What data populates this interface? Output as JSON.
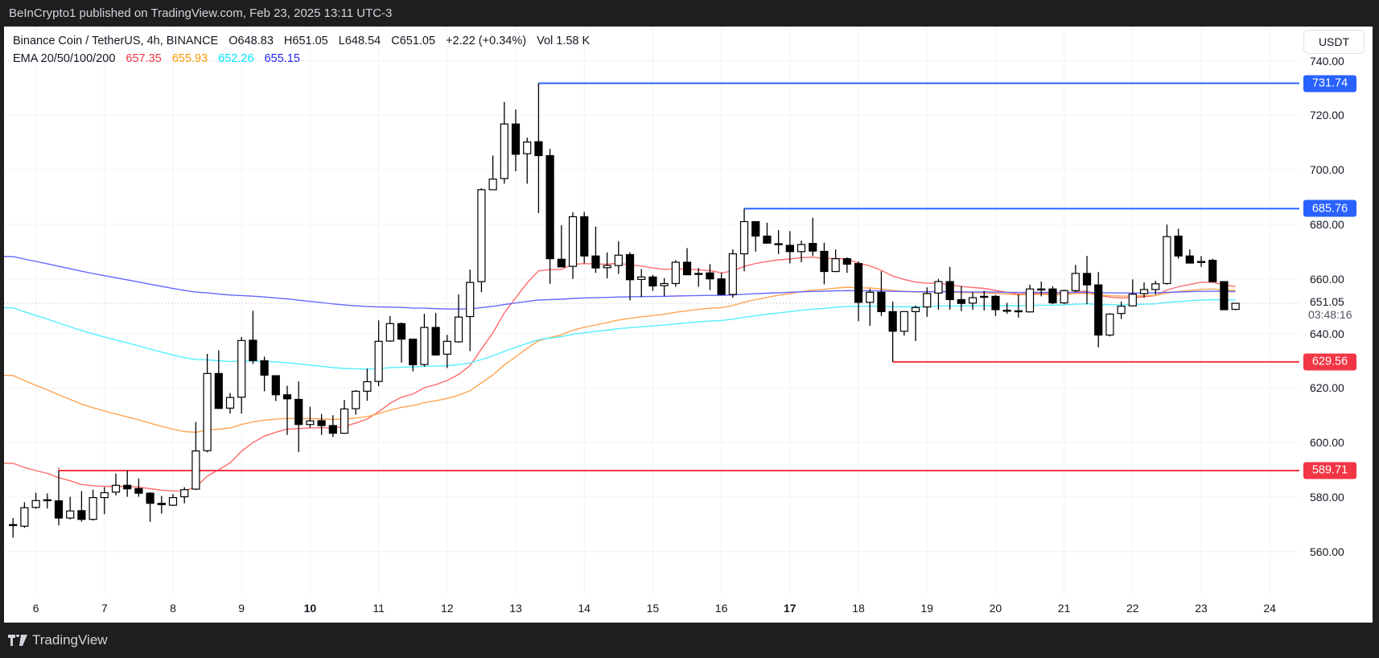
{
  "header": {
    "published": "BeInCrypto1 published on TradingView.com, Feb 23, 2025 13:11 UTC-3"
  },
  "footer": {
    "brand": "TradingView"
  },
  "legend": {
    "symbol": "Binance Coin / TetherUS, 4h, BINANCE",
    "open": "O648.83",
    "high": "H651.05",
    "low": "L648.54",
    "close": "C651.05",
    "change": "+2.22 (+0.34%)",
    "volume": "Vol 1.58 K",
    "ema_label": "EMA 20/50/100/200",
    "ema_values": [
      {
        "value": "657.35",
        "color": "#f23645"
      },
      {
        "value": "655.93",
        "color": "#ff9800"
      },
      {
        "value": "652.26",
        "color": "#00e5ff"
      },
      {
        "value": "655.15",
        "color": "#2424ff"
      }
    ]
  },
  "currency_button": "USDT",
  "chart_data": {
    "type": "candlestick",
    "title": "Binance Coin / TetherUS, 4h, BINANCE",
    "start_day": 5.6667,
    "candle_days": 0.16667,
    "ylim": [
      550,
      745
    ],
    "xlim": [
      5.5,
      24.5
    ],
    "y_ticks": [
      "740.00",
      "720.00",
      "700.00",
      "680.00",
      "660.00",
      "640.00",
      "620.00",
      "600.00",
      "580.00",
      "560.00"
    ],
    "x_ticks": [
      {
        "label": "6",
        "day": 6
      },
      {
        "label": "7",
        "day": 7
      },
      {
        "label": "8",
        "day": 8
      },
      {
        "label": "9",
        "day": 9
      },
      {
        "label": "10",
        "day": 10,
        "bold": true
      },
      {
        "label": "11",
        "day": 11
      },
      {
        "label": "12",
        "day": 12
      },
      {
        "label": "13",
        "day": 13
      },
      {
        "label": "14",
        "day": 14
      },
      {
        "label": "15",
        "day": 15
      },
      {
        "label": "16",
        "day": 16
      },
      {
        "label": "17",
        "day": 17,
        "bold": true
      },
      {
        "label": "18",
        "day": 18
      },
      {
        "label": "19",
        "day": 19
      },
      {
        "label": "20",
        "day": 20
      },
      {
        "label": "21",
        "day": 21
      },
      {
        "label": "22",
        "day": 22
      },
      {
        "label": "23",
        "day": 23
      },
      {
        "label": "24",
        "day": 24
      }
    ],
    "ohlc": [
      [
        569.9,
        572.3,
        565.1,
        569.9
      ],
      [
        569.3,
        578.1,
        568.7,
        576.1
      ],
      [
        576.2,
        581.6,
        575.7,
        578.7
      ],
      [
        579.0,
        581.3,
        575.8,
        579.0
      ],
      [
        578.6,
        589.7,
        569.6,
        572.3
      ],
      [
        572.3,
        580.1,
        571.8,
        574.9
      ],
      [
        575.0,
        582.2,
        571.0,
        571.8
      ],
      [
        571.8,
        582.7,
        571.4,
        579.8
      ],
      [
        579.8,
        583.6,
        573.7,
        581.6
      ],
      [
        581.8,
        588.6,
        580.6,
        584.3
      ],
      [
        584.3,
        589.7,
        580.1,
        583.0
      ],
      [
        583.1,
        586.8,
        580.1,
        581.4
      ],
      [
        581.4,
        581.8,
        570.9,
        577.7
      ],
      [
        577.7,
        580.4,
        573.9,
        577.2
      ],
      [
        577.0,
        581.1,
        576.7,
        579.8
      ],
      [
        580.1,
        583.6,
        577.7,
        582.7
      ],
      [
        582.9,
        607.5,
        582.6,
        596.9
      ],
      [
        597.0,
        632.5,
        596.4,
        625.3
      ],
      [
        625.3,
        633.8,
        612.3,
        612.5
      ],
      [
        612.6,
        618.2,
        610.6,
        616.5
      ],
      [
        616.6,
        638.7,
        610.6,
        637.4
      ],
      [
        637.5,
        648.3,
        628.8,
        630.0
      ],
      [
        630.0,
        631.5,
        618.8,
        624.7
      ],
      [
        624.5,
        624.5,
        615.2,
        617.5
      ],
      [
        617.5,
        620.8,
        602.8,
        616.0
      ],
      [
        615.8,
        622.4,
        596.5,
        606.6
      ],
      [
        606.6,
        613.1,
        605.4,
        607.9
      ],
      [
        608.0,
        610.5,
        602.8,
        606.2
      ],
      [
        606.2,
        610.0,
        602.0,
        603.4
      ],
      [
        603.4,
        615.6,
        603.2,
        612.3
      ],
      [
        612.4,
        619.2,
        610.2,
        618.8
      ],
      [
        618.8,
        627.1,
        615.3,
        622.3
      ],
      [
        622.4,
        644.8,
        620.6,
        637.1
      ],
      [
        637.2,
        646.4,
        636.9,
        643.6
      ],
      [
        643.6,
        644.0,
        629.3,
        637.9
      ],
      [
        637.9,
        637.9,
        626.1,
        628.5
      ],
      [
        628.6,
        647.2,
        627.8,
        642.2
      ],
      [
        642.2,
        647.5,
        631.8,
        632.1
      ],
      [
        632.4,
        639.5,
        627.3,
        637.1
      ],
      [
        636.9,
        654.3,
        636.6,
        646.0
      ],
      [
        646.2,
        663.4,
        633.5,
        658.7
      ],
      [
        659.0,
        693.2,
        655.1,
        692.7
      ],
      [
        692.7,
        705.2,
        692.5,
        696.6
      ],
      [
        696.8,
        724.9,
        694.9,
        716.8
      ],
      [
        716.8,
        722.1,
        699.5,
        705.7
      ],
      [
        705.9,
        711.8,
        694.9,
        710.2
      ],
      [
        710.3,
        731.74,
        684.1,
        705.2
      ],
      [
        705.2,
        707.7,
        658.2,
        667.4
      ],
      [
        667.2,
        679.7,
        664.4,
        664.4
      ],
      [
        664.6,
        684.4,
        660.0,
        682.8
      ],
      [
        682.8,
        684.6,
        665.7,
        668.4
      ],
      [
        668.4,
        679.2,
        662.2,
        664.0
      ],
      [
        664.1,
        669.7,
        660.2,
        664.9
      ],
      [
        664.9,
        673.8,
        661.8,
        668.7
      ],
      [
        668.9,
        669.8,
        652.1,
        659.7
      ],
      [
        659.8,
        663.6,
        653.3,
        660.7
      ],
      [
        660.7,
        661.5,
        655.6,
        657.4
      ],
      [
        657.5,
        660.3,
        653.6,
        658.3
      ],
      [
        658.3,
        666.9,
        657.1,
        666.1
      ],
      [
        666.1,
        671.3,
        661.5,
        661.5
      ],
      [
        662.0,
        664.0,
        657.1,
        661.9
      ],
      [
        662.2,
        665.4,
        655.9,
        660.0
      ],
      [
        660.0,
        662.2,
        654.1,
        654.3
      ],
      [
        654.3,
        670.8,
        653.1,
        669.2
      ],
      [
        669.2,
        685.76,
        662.8,
        681.0
      ],
      [
        681.0,
        681.0,
        670.0,
        675.7
      ],
      [
        675.7,
        680.6,
        673.1,
        673.1
      ],
      [
        672.9,
        677.9,
        669.1,
        672.8
      ],
      [
        672.3,
        677.5,
        665.7,
        670.0
      ],
      [
        670.0,
        674.0,
        666.1,
        672.6
      ],
      [
        673.0,
        682.4,
        668.4,
        670.2
      ],
      [
        670.1,
        673.3,
        658.0,
        662.7
      ],
      [
        662.7,
        670.8,
        662.5,
        667.4
      ],
      [
        667.4,
        667.9,
        662.2,
        665.4
      ],
      [
        665.6,
        666.4,
        644.5,
        651.4
      ],
      [
        651.4,
        656.3,
        642.8,
        655.1
      ],
      [
        655.1,
        662.8,
        646.4,
        648.0
      ],
      [
        648.0,
        651.7,
        629.56,
        640.8
      ],
      [
        640.8,
        648.0,
        639.2,
        648.0
      ],
      [
        648.0,
        650.2,
        637.2,
        649.5
      ],
      [
        649.7,
        656.9,
        646.1,
        654.6
      ],
      [
        654.8,
        660.0,
        648.7,
        659.0
      ],
      [
        659.0,
        664.4,
        648.7,
        652.4
      ],
      [
        652.4,
        657.3,
        648.2,
        651.0
      ],
      [
        651.1,
        655.1,
        648.7,
        653.1
      ],
      [
        653.6,
        655.6,
        648.4,
        653.5
      ],
      [
        653.6,
        654.1,
        646.4,
        648.7
      ],
      [
        648.5,
        651.2,
        647.2,
        648.4
      ],
      [
        648.2,
        654.3,
        645.8,
        648.3
      ],
      [
        647.9,
        657.9,
        647.7,
        656.3
      ],
      [
        656.2,
        659.0,
        653.6,
        656.3
      ],
      [
        656.3,
        657.3,
        650.7,
        651.2
      ],
      [
        651.2,
        656.1,
        650.7,
        655.7
      ],
      [
        655.7,
        665.1,
        655.1,
        662.0
      ],
      [
        662.0,
        668.4,
        650.7,
        657.8
      ],
      [
        657.8,
        662.5,
        634.9,
        639.4
      ],
      [
        639.4,
        647.4,
        638.9,
        647.1
      ],
      [
        647.3,
        651.7,
        645.3,
        650.0
      ],
      [
        650.1,
        659.8,
        650.0,
        654.4
      ],
      [
        654.6,
        658.7,
        653.1,
        656.1
      ],
      [
        656.1,
        659.3,
        654.3,
        658.2
      ],
      [
        658.3,
        679.9,
        657.9,
        675.5
      ],
      [
        675.7,
        678.4,
        667.4,
        668.4
      ],
      [
        668.4,
        670.8,
        665.8,
        665.8
      ],
      [
        666.0,
        668.4,
        664.4,
        666.4
      ],
      [
        666.8,
        667.4,
        658.8,
        659.0
      ],
      [
        659.0,
        659.0,
        648.7,
        648.7
      ],
      [
        648.83,
        651.05,
        648.54,
        651.05
      ]
    ],
    "ema": [
      {
        "name": "EMA 20",
        "period": 20,
        "seed": 592.4,
        "color": "#ff6b6b"
      },
      {
        "name": "EMA 50",
        "period": 50,
        "seed": 624.6,
        "color": "#ffa450"
      },
      {
        "name": "EMA 100",
        "period": 100,
        "seed": 649.4,
        "color": "#55eeff"
      },
      {
        "name": "EMA 200",
        "period": 200,
        "seed": 668.2,
        "color": "#6666ff"
      }
    ],
    "levels": [
      {
        "price": 731.74,
        "label": "731.74",
        "from_day": 13.3333,
        "color": "#2962ff"
      },
      {
        "price": 685.76,
        "label": "685.76",
        "from_day": 16.3333,
        "color": "#2962ff"
      },
      {
        "price": 629.56,
        "label": "629.56",
        "from_day": 18.5,
        "color": "#f23645"
      },
      {
        "price": 589.71,
        "label": "589.71",
        "from_day": 6.3333,
        "color": "#f23645"
      }
    ],
    "last_price": {
      "price": 651.05,
      "label": "651.05",
      "countdown": "03:48:16"
    }
  }
}
